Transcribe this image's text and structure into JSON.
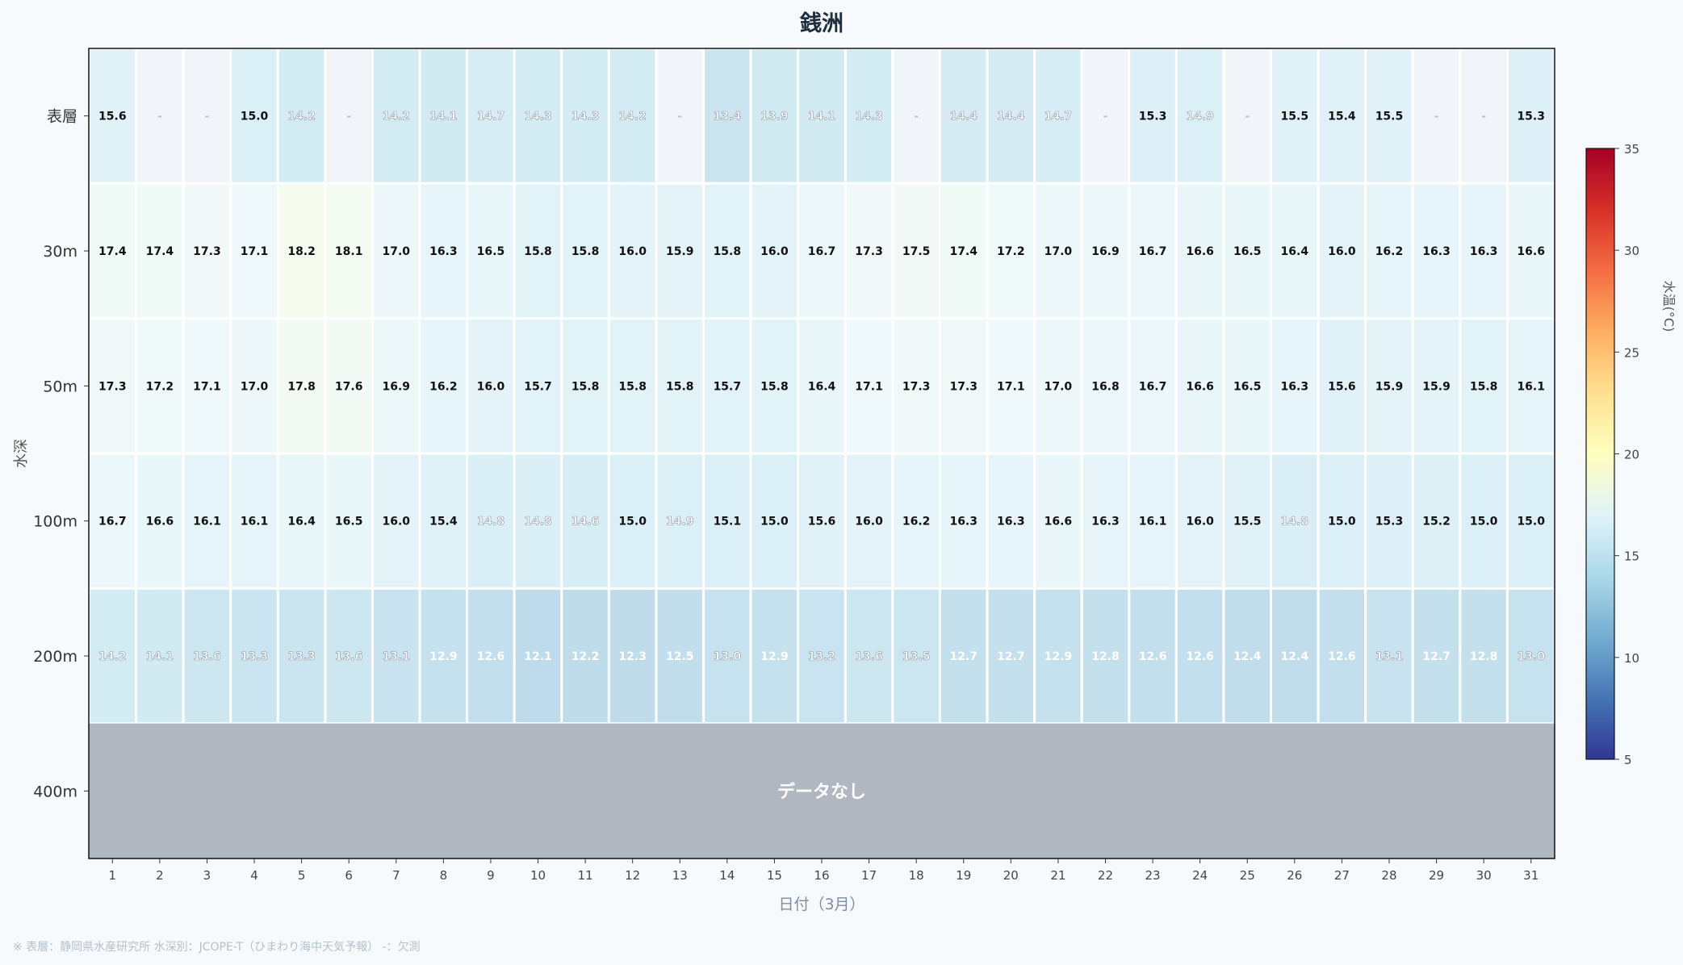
{
  "chart_data": {
    "type": "heatmap",
    "title": "銭洲",
    "xlabel": "日付（3月）",
    "ylabel": "水深",
    "x": [
      1,
      2,
      3,
      4,
      5,
      6,
      7,
      8,
      9,
      10,
      11,
      12,
      13,
      14,
      15,
      16,
      17,
      18,
      19,
      20,
      21,
      22,
      23,
      24,
      25,
      26,
      27,
      28,
      29,
      30,
      31
    ],
    "y": [
      "表層",
      "30m",
      "50m",
      "100m",
      "200m",
      "400m"
    ],
    "values": [
      [
        15.6,
        null,
        null,
        15.0,
        14.2,
        null,
        14.2,
        14.1,
        14.7,
        14.3,
        14.3,
        14.2,
        null,
        13.4,
        13.9,
        14.1,
        14.3,
        null,
        14.4,
        14.4,
        14.7,
        null,
        15.3,
        14.9,
        null,
        15.5,
        15.4,
        15.5,
        null,
        null,
        15.3
      ],
      [
        17.4,
        17.4,
        17.3,
        17.1,
        18.2,
        18.1,
        17.0,
        16.3,
        16.5,
        15.8,
        15.8,
        16.0,
        15.9,
        15.8,
        16.0,
        16.7,
        17.3,
        17.5,
        17.4,
        17.2,
        17.0,
        16.9,
        16.7,
        16.6,
        16.5,
        16.4,
        16.0,
        16.2,
        16.3,
        16.3,
        16.6
      ],
      [
        17.3,
        17.2,
        17.1,
        17.0,
        17.8,
        17.6,
        16.9,
        16.2,
        16.0,
        15.7,
        15.8,
        15.8,
        15.8,
        15.7,
        15.8,
        16.4,
        17.1,
        17.3,
        17.3,
        17.1,
        17.0,
        16.8,
        16.7,
        16.6,
        16.5,
        16.3,
        15.6,
        15.9,
        15.9,
        15.8,
        16.1
      ],
      [
        16.7,
        16.6,
        16.1,
        16.1,
        16.4,
        16.5,
        16.0,
        15.4,
        14.8,
        14.8,
        14.6,
        15.0,
        14.9,
        15.1,
        15.0,
        15.6,
        16.0,
        16.2,
        16.3,
        16.3,
        16.6,
        16.3,
        16.1,
        16.0,
        15.5,
        14.8,
        15.0,
        15.3,
        15.2,
        15.0,
        15.0
      ],
      [
        14.2,
        14.1,
        13.6,
        13.3,
        13.3,
        13.6,
        13.1,
        12.9,
        12.6,
        12.1,
        12.2,
        12.3,
        12.5,
        13.0,
        12.9,
        13.2,
        13.6,
        13.5,
        12.7,
        12.7,
        12.9,
        12.8,
        12.6,
        12.6,
        12.4,
        12.4,
        12.6,
        13.1,
        12.7,
        12.8,
        13.0
      ],
      [
        null,
        null,
        null,
        null,
        null,
        null,
        null,
        null,
        null,
        null,
        null,
        null,
        null,
        null,
        null,
        null,
        null,
        null,
        null,
        null,
        null,
        null,
        null,
        null,
        null,
        null,
        null,
        null,
        null,
        null,
        null
      ]
    ],
    "missing_label": "-",
    "no_data_label": "データなし",
    "colorbar": {
      "label": "水温(°C)",
      "min": 5,
      "max": 35,
      "ticks": [
        5,
        10,
        15,
        20,
        25,
        30,
        35
      ],
      "colormap": "RdYlBu_r"
    },
    "grid": false,
    "colors": {
      "no_data": "#b0b7c1",
      "missing": "#f1f5fa",
      "background": "#f7fafd",
      "title": "#1f2d3d",
      "axis_label": "#7a8ea3"
    }
  },
  "footnote": "※ 表層：静岡県水産研究所  水深別：JCOPE-T（ひまわり海中天気予報）  -：欠測"
}
